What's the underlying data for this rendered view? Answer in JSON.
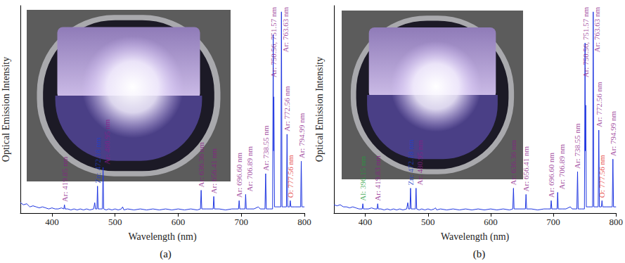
{
  "chart_data": [
    {
      "type": "line",
      "caption": "(a)",
      "x_label": "Wavelength (nm)",
      "y_label": "Optical Emission Intensity",
      "color": "#1f36e0",
      "grid": false,
      "tick_labels": "x",
      "xlim": [
        350,
        800
      ],
      "xticks": [
        400,
        500,
        600,
        700,
        800
      ],
      "ylim": [
        0,
        1
      ],
      "x": [
        350,
        355,
        360,
        365,
        370,
        375,
        380,
        385,
        390,
        395,
        400,
        405,
        410,
        415,
        418.8,
        419.8,
        420.8,
        425,
        430,
        435,
        440,
        445,
        450,
        455,
        460,
        466,
        467.8,
        469,
        471.2,
        472.2,
        473.2,
        476,
        479.9,
        481,
        482,
        486,
        490,
        495,
        500,
        505,
        510,
        512,
        514,
        520,
        530,
        540,
        550,
        560,
        570,
        580,
        590,
        600,
        610,
        620,
        630,
        635.3,
        636.4,
        637.4,
        645,
        655.4,
        656.4,
        657.4,
        665,
        675,
        685,
        690,
        695.6,
        696.6,
        697.6,
        700,
        705.9,
        706.9,
        707.9,
        714,
        720,
        727,
        730,
        737.5,
        738.6,
        739.6,
        745,
        749.6,
        750.6,
        751.1,
        751.6,
        752.6,
        755,
        760,
        762.6,
        763.6,
        764.6,
        767,
        771.5,
        772.5,
        773.5,
        776.6,
        777.6,
        778.6,
        785,
        794,
        795,
        796,
        800
      ],
      "values": [
        0.05,
        0.04,
        0.045,
        0.03,
        0.035,
        0.03,
        0.025,
        0.03,
        0.025,
        0.02,
        0.025,
        0.02,
        0.02,
        0.025,
        0.02,
        0.04,
        0.02,
        0.02,
        0.015,
        0.02,
        0.015,
        0.02,
        0.015,
        0.02,
        0.015,
        0.02,
        0.05,
        0.02,
        0.02,
        0.13,
        0.02,
        0.02,
        0.02,
        0.22,
        0.02,
        0.015,
        0.02,
        0.015,
        0.02,
        0.015,
        0.02,
        0.03,
        0.015,
        0.02,
        0.015,
        0.02,
        0.015,
        0.02,
        0.015,
        0.02,
        0.015,
        0.02,
        0.015,
        0.02,
        0.015,
        0.02,
        0.11,
        0.02,
        0.02,
        0.02,
        0.08,
        0.02,
        0.02,
        0.015,
        0.02,
        0.02,
        0.02,
        0.06,
        0.02,
        0.02,
        0.02,
        0.09,
        0.02,
        0.02,
        0.02,
        0.03,
        0.02,
        0.02,
        0.19,
        0.02,
        0.02,
        0.02,
        0.86,
        0.3,
        0.56,
        0.03,
        0.03,
        0.03,
        0.03,
        0.97,
        0.03,
        0.03,
        0.03,
        0.38,
        0.03,
        0.03,
        0.06,
        0.03,
        0.03,
        0.03,
        0.25,
        0.03,
        0.03
      ],
      "annotations": [
        {
          "label": "Ar: 419.85 nm",
          "x": 419.85,
          "color": "#8b1a89"
        },
        {
          "label": "Zn: 472.18 nm",
          "x": 472.18,
          "color": "#1f3fc8"
        },
        {
          "label": "Ar: 480.95 nm",
          "x": 480.95,
          "color": "#8b1a89"
        },
        {
          "label": "Ar: 636.36 nm",
          "x": 636.36,
          "color": "#8b1a89"
        },
        {
          "label": "Ar: 656.41 nm",
          "x": 656.41,
          "color": "#8b1a89"
        },
        {
          "label": "Ar: 696.60 nm",
          "x": 696.6,
          "color": "#8b1a89"
        },
        {
          "label": "Ar: 706.89 nm",
          "x": 706.89,
          "color": "#8b1a89"
        },
        {
          "label": "Ar: 738.55 nm",
          "x": 738.55,
          "color": "#8b1a89"
        },
        {
          "label": "Ar: 750.56, 751.57 nm",
          "x": 751,
          "color": "#8b1a89"
        },
        {
          "label": "Ar: 763.63 nm",
          "x": 763.63,
          "color": "#8b1a89"
        },
        {
          "label": "Ar: 772.56 nm",
          "x": 772.56,
          "color": "#8b1a89"
        },
        {
          "label": "O: 777.56 nm",
          "x": 777.56,
          "color": "#e0231c"
        },
        {
          "label": "Ar: 794.99 nm",
          "x": 794.99,
          "color": "#8b1a89"
        }
      ]
    },
    {
      "type": "line",
      "caption": "(b)",
      "x_label": "Wavelength (nm)",
      "y_label": "Optical Emission Intensity",
      "color": "#1f36e0",
      "grid": false,
      "tick_labels": "x",
      "xlim": [
        350,
        800
      ],
      "xticks": [
        400,
        500,
        600,
        700,
        800
      ],
      "ylim": [
        0,
        1
      ],
      "x": [
        350,
        355,
        360,
        365,
        370,
        375,
        380,
        385,
        390,
        395.1,
        396.1,
        397.1,
        400,
        405,
        410,
        415,
        418.8,
        419.8,
        420.8,
        425,
        430,
        435,
        440,
        445,
        450,
        455,
        460,
        466,
        467.8,
        469,
        471.2,
        472.2,
        473.2,
        476,
        479.9,
        481,
        482,
        486,
        490,
        495,
        500,
        505,
        510,
        512,
        514,
        520,
        530,
        540,
        550,
        560,
        570,
        580,
        590,
        600,
        610,
        620,
        630,
        635.3,
        636.4,
        637.4,
        645,
        655.4,
        656.4,
        657.4,
        665,
        675,
        685,
        690,
        695.6,
        696.6,
        697.6,
        700,
        705.9,
        706.9,
        707.9,
        714,
        720,
        727,
        730,
        737.5,
        738.6,
        739.6,
        745,
        749.6,
        750.6,
        751.1,
        751.6,
        752.6,
        755,
        760,
        762.6,
        763.6,
        764.6,
        767,
        771.5,
        772.5,
        773.5,
        776.6,
        777.6,
        778.6,
        785,
        794,
        795,
        796,
        800
      ],
      "values": [
        0.04,
        0.035,
        0.04,
        0.03,
        0.03,
        0.025,
        0.03,
        0.025,
        0.02,
        0.02,
        0.045,
        0.02,
        0.02,
        0.02,
        0.025,
        0.02,
        0.02,
        0.045,
        0.02,
        0.02,
        0.015,
        0.02,
        0.015,
        0.02,
        0.015,
        0.02,
        0.015,
        0.02,
        0.05,
        0.02,
        0.02,
        0.12,
        0.02,
        0.02,
        0.02,
        0.12,
        0.02,
        0.015,
        0.02,
        0.015,
        0.02,
        0.015,
        0.02,
        0.025,
        0.015,
        0.02,
        0.015,
        0.02,
        0.015,
        0.02,
        0.015,
        0.02,
        0.015,
        0.02,
        0.015,
        0.02,
        0.015,
        0.02,
        0.12,
        0.02,
        0.02,
        0.02,
        0.09,
        0.02,
        0.02,
        0.015,
        0.02,
        0.02,
        0.02,
        0.06,
        0.02,
        0.02,
        0.02,
        0.1,
        0.02,
        0.02,
        0.02,
        0.03,
        0.02,
        0.02,
        0.2,
        0.02,
        0.02,
        0.02,
        0.82,
        0.3,
        0.52,
        0.03,
        0.03,
        0.03,
        0.03,
        0.97,
        0.03,
        0.03,
        0.03,
        0.4,
        0.03,
        0.03,
        0.06,
        0.03,
        0.03,
        0.03,
        0.26,
        0.03,
        0.03
      ],
      "annotations": [
        {
          "label": "Al: 396.15 nm",
          "x": 396.15,
          "color": "#1f9e3a"
        },
        {
          "label": "Ar: 419.83 nm",
          "x": 419.83,
          "color": "#8b1a89"
        },
        {
          "label": "Zn: 472.18 nm",
          "x": 472.18,
          "color": "#1f3fc8"
        },
        {
          "label": "Ar: 480.95 nm",
          "x": 480.95,
          "color": "#8b1a89"
        },
        {
          "label": "Ar: 636.36 nm",
          "x": 636.36,
          "color": "#8b1a89"
        },
        {
          "label": "Ar: 656.41 nm",
          "x": 656.41,
          "color": "#8b1a89"
        },
        {
          "label": "Ar: 696.60 nm",
          "x": 696.6,
          "color": "#8b1a89"
        },
        {
          "label": "Ar: 706.89 nm",
          "x": 706.89,
          "color": "#8b1a89"
        },
        {
          "label": "Ar: 738.55 nm",
          "x": 738.55,
          "color": "#8b1a89"
        },
        {
          "label": "Ar: 750.56, 751.57 nm",
          "x": 751,
          "color": "#8b1a89"
        },
        {
          "label": "Ar: 763.63 nm",
          "x": 763.63,
          "color": "#8b1a89"
        },
        {
          "label": "Ar: 772.56 nm",
          "x": 772.56,
          "color": "#8b1a89"
        },
        {
          "label": "O: 777.56 nm",
          "x": 777.56,
          "color": "#e0231c"
        },
        {
          "label": "Ar: 794.99 nm",
          "x": 794.99,
          "color": "#8b1a89"
        }
      ]
    }
  ]
}
